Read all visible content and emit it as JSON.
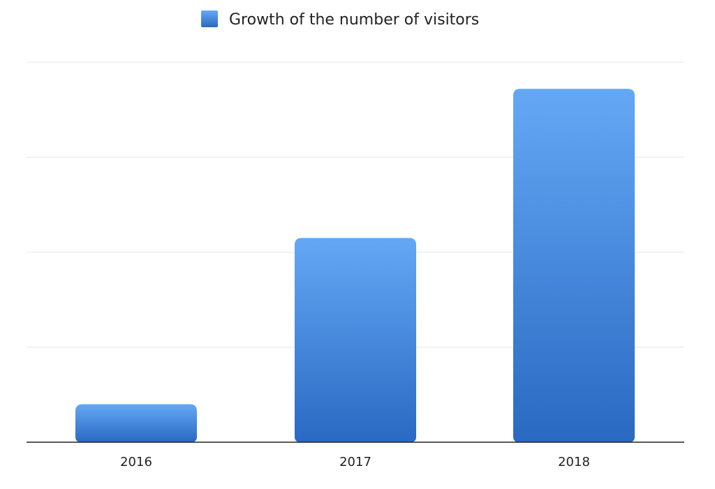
{
  "chart_data": {
    "type": "bar",
    "categories": [
      "2016",
      "2017",
      "2018"
    ],
    "series": [
      {
        "name": "Growth of the number of visitors",
        "values": [
          0.4,
          2.15,
          3.72
        ]
      }
    ],
    "ylim": [
      0,
      4
    ],
    "grid": true,
    "legend": "top-center",
    "colors": {
      "bar_top": "#64a8f5",
      "bar_bottom": "#2a69c2",
      "grid": "#e6e6e6",
      "axis": "#222222",
      "text": "#222222"
    }
  }
}
